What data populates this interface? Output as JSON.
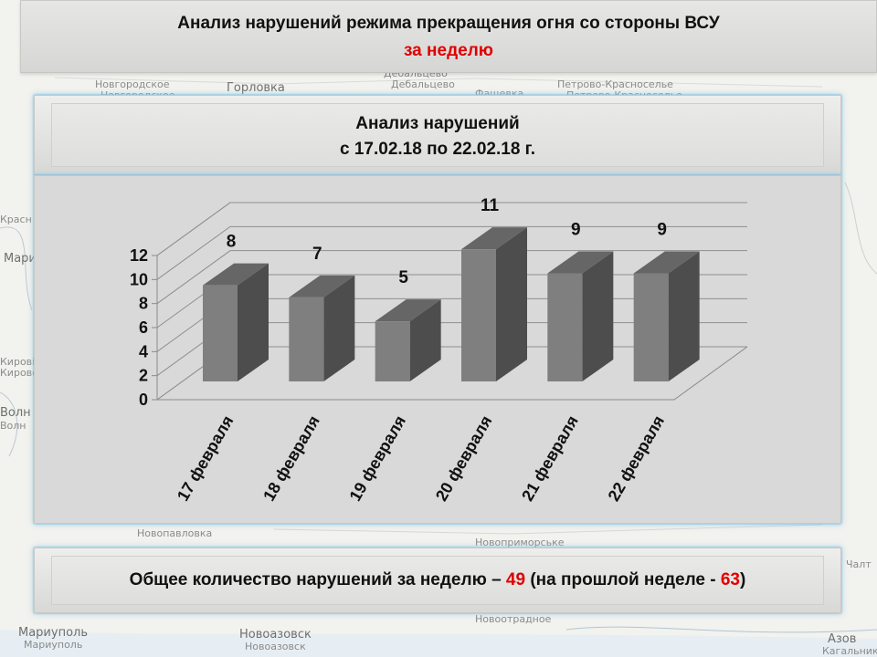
{
  "header": {
    "title": "Анализ нарушений режима прекращения огня со стороны ВСУ",
    "subtitle": "за неделю"
  },
  "chart_header": {
    "line1": "Анализ нарушений",
    "line2": "с 17.02.18 по 22.02.18 г."
  },
  "footer": {
    "prefix": "Общее количество нарушений за неделю – ",
    "total": "49",
    "middle": " (на прошлой неделе - ",
    "previous": "63",
    "suffix": ")"
  },
  "map_labels": [
    "Новгородское",
    "Новгородское",
    "Горловка",
    "Дебальцево",
    "Дебальцево",
    "Фащевка",
    "Петрово-Красноселье",
    "Петрово-Красноселье",
    "Мариуполь",
    "Мариуполь",
    "Новоазовск",
    "Новоазовск",
    "Азов",
    "Кагальник",
    "Новоотрадное",
    "Чалт",
    "Новоприморське",
    "Новопавловка",
    "Мари",
    "Волн",
    "Волн",
    "Красн",
    "Кирові",
    "Кировск"
  ],
  "colors": {
    "bar_front": "#7f7f7f",
    "bar_side": "#4d4d4d",
    "bar_top": "#666666",
    "accent_red": "#e00000"
  },
  "chart_data": {
    "type": "bar",
    "title": "",
    "categories": [
      "17 февраля",
      "18 февраля",
      "19 февраля",
      "20 февраля",
      "21 февраля",
      "22 февраля"
    ],
    "values": [
      8,
      7,
      5,
      11,
      9,
      9
    ],
    "yticks": [
      "0",
      "2",
      "4",
      "6",
      "8",
      "10",
      "12"
    ],
    "ylim": [
      0,
      12
    ],
    "grid": true,
    "legend": "none",
    "data_labels": true
  }
}
